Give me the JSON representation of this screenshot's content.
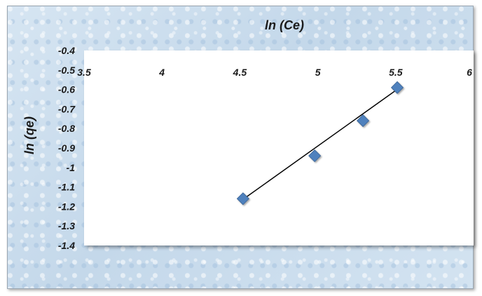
{
  "chart_data": {
    "type": "scatter",
    "title": "ln (Ce)",
    "xlabel": "ln (Ce)",
    "ylabel": "ln (qe)",
    "xlim": [
      3.5,
      6
    ],
    "ylim": [
      -1.4,
      -0.4
    ],
    "x_ticks": [
      "3.5",
      "4",
      "4.5",
      "5",
      "5.5",
      "6"
    ],
    "y_ticks": [
      "-0.4",
      "-0.5",
      "-0.6",
      "-0.7",
      "-0.8",
      "-0.9",
      "-1",
      "-1.1",
      "-1.2",
      "-1.3",
      "-1.4"
    ],
    "x_axis_position": "top",
    "grid": false,
    "legend": "none",
    "series": [
      {
        "marker": "diamond",
        "color": "#4f81bd",
        "points": [
          {
            "x": 4.52,
            "y": -1.16
          },
          {
            "x": 4.98,
            "y": -0.94
          },
          {
            "x": 5.29,
            "y": -0.76
          },
          {
            "x": 5.51,
            "y": -0.59
          }
        ]
      }
    ],
    "trendline": {
      "type": "linear",
      "color": "#000000",
      "x_range": [
        4.52,
        5.51
      ],
      "slope": 0.57,
      "intercept": -3.74
    }
  }
}
